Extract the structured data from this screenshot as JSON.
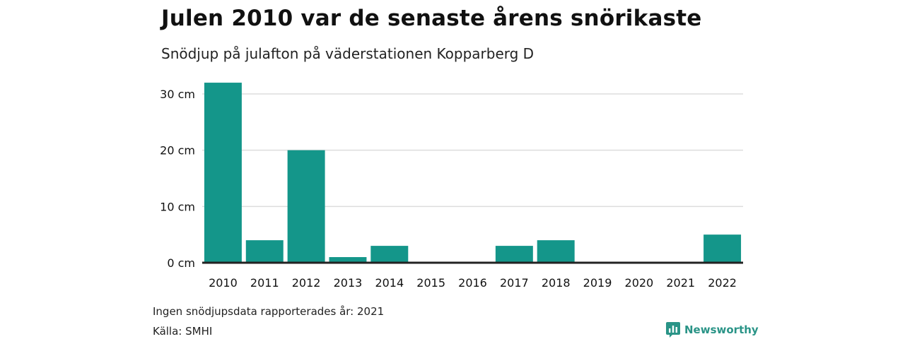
{
  "title": "Julen 2010 var de senaste årens snörikaste",
  "subtitle": "Snödjup på julafton på väderstationen Kopparberg D",
  "note": "Ingen snödjupsdata rapporterades år: 2021",
  "source": "Källa: SMHI",
  "brand": {
    "name": "Newsworthy",
    "icon": "newsworthy-logo-icon",
    "color": "#2a9487"
  },
  "colors": {
    "bar": "#14968a",
    "grid": "#dddddd",
    "axis": "#222222",
    "text": "#111111"
  },
  "chart_data": {
    "type": "bar",
    "categories": [
      "2010",
      "2011",
      "2012",
      "2013",
      "2014",
      "2015",
      "2016",
      "2017",
      "2018",
      "2019",
      "2020",
      "2021",
      "2022"
    ],
    "values": [
      32,
      4,
      20,
      1,
      3,
      0,
      0,
      3,
      4,
      0,
      0,
      0,
      5
    ],
    "ylim": [
      0,
      30
    ],
    "yticks": [
      0,
      10,
      20,
      30
    ],
    "ytick_labels": [
      "0 cm",
      "10 cm",
      "20 cm",
      "30 cm"
    ],
    "grid": true,
    "legend": "none"
  }
}
